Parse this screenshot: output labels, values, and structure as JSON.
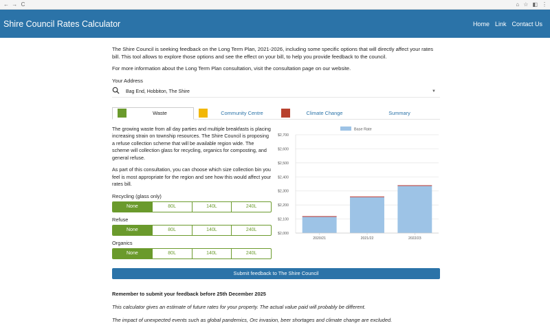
{
  "browser": {
    "back": "←",
    "forward": "→",
    "reload": "C",
    "actions": [
      "⌂",
      "☆",
      "◧",
      "⋮"
    ]
  },
  "app": {
    "title": "Shire Council Rates Calculator"
  },
  "nav": {
    "home": "Home",
    "link": "Link",
    "contact": "Contact Us"
  },
  "intro": {
    "p1": "The Shire Council is seeking feedback on the Long Term Plan, 2021-2026, including some specific options that will directly affect your rates bill. This tool allows to explore those options and see the effect on your bill, to help you provide feedback to the council.",
    "p2": "For more information about the Long Term Plan consultation, visit the consultation page on our website."
  },
  "address": {
    "label": "Your Address",
    "value": "Bag End, Hobbiton, The Shire"
  },
  "tabs": [
    {
      "label": "Waste",
      "color": "#6a9a2c"
    },
    {
      "label": "Community Centre",
      "color": "#f2b705"
    },
    {
      "label": "Climate Change",
      "color": "#b8412e"
    },
    {
      "label": "Summary"
    }
  ],
  "waste": {
    "p1": "The growing waste from all day parties and multiple breakfasts is placing increasing strain on township resources. The Shire Council is proposing a refuse collection scheme that will be available region wide. The scheme will collection glass for recycling, organics for composting, and general refuse.",
    "p2": "As part of this consultation, you can choose which size collection bin you feel is most appropriate for the region and see how this would affect your rates bill.",
    "groups": [
      {
        "label": "Recycling (glass only)",
        "options": [
          "None",
          "80L",
          "140L",
          "240L"
        ],
        "selected": 0
      },
      {
        "label": "Refuse",
        "options": [
          "None",
          "80L",
          "140L",
          "240L"
        ],
        "selected": 0
      },
      {
        "label": "Organics",
        "options": [
          "None",
          "80L",
          "140L",
          "240L"
        ],
        "selected": 0
      }
    ]
  },
  "chart_data": {
    "type": "bar",
    "categories": [
      "2020/21",
      "2021/22",
      "2022/23"
    ],
    "series": [
      {
        "name": "Base Rate",
        "values": [
          2115,
          2255,
          2335
        ],
        "color": "#9dc3e6"
      }
    ],
    "accent": {
      "color": "#c0504d",
      "values": [
        2,
        3,
        3
      ]
    },
    "ylim": [
      2000,
      2700
    ],
    "yticks": [
      "$2,000",
      "$2,100",
      "$2,200",
      "$2,300",
      "$2,400",
      "$2,500",
      "$2,600",
      "$2,700"
    ],
    "legend_position": "top",
    "grid": true
  },
  "submit": {
    "label": "Submit feedback to The Shire Council"
  },
  "notes": {
    "reminder": "Remember to submit your feedback before 25th December 2025",
    "estimate": "This calculator gives an estimate of future rates for your property. The actual value paid will probably be different.",
    "excluded": "The impact of unexpected events such as global pandemics, Orc invasion, beer shortages and climate change are excluded."
  }
}
